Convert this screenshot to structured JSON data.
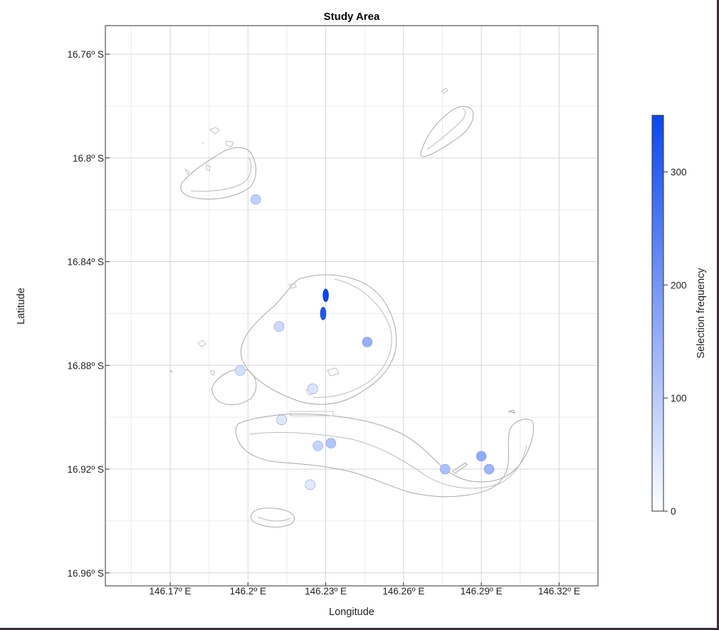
{
  "chart_data": {
    "type": "heatmap",
    "title": "Study Area",
    "xlabel": "Longitude",
    "ylabel": "Latitude",
    "x_ticks": [
      146.17,
      146.2,
      146.23,
      146.26,
      146.29,
      146.32
    ],
    "x_tick_labels": [
      "146.17º E",
      "146.2º E",
      "146.23º E",
      "146.26º E",
      "146.29º E",
      "146.32º E"
    ],
    "y_ticks": [
      -16.76,
      -16.8,
      -16.84,
      -16.88,
      -16.92,
      -16.96
    ],
    "y_tick_labels": [
      "16.76º S",
      "16.8º S",
      "16.84º S",
      "16.88º S",
      "16.92º S",
      "16.96º S"
    ],
    "xlim": [
      146.145,
      146.335
    ],
    "ylim": [
      -16.965,
      -16.749
    ],
    "grid": true,
    "colorbar": {
      "label": "Selection frequency",
      "range": [
        0,
        350
      ],
      "ticks": [
        0,
        100,
        200,
        300
      ],
      "tick_labels": [
        "0",
        "100",
        "200",
        "300"
      ],
      "color_low": "#ffffff",
      "color_high": "#0a47f0"
    },
    "outline_color": "#a8a8a8",
    "selected_regions": [
      {
        "x": 146.203,
        "y": -16.816,
        "value": 90
      },
      {
        "x": 146.212,
        "y": -16.865,
        "value": 70
      },
      {
        "x": 146.197,
        "y": -16.882,
        "value": 60
      },
      {
        "x": 146.246,
        "y": -16.871,
        "value": 150
      },
      {
        "x": 146.23,
        "y": -16.853,
        "value": 350
      },
      {
        "x": 146.229,
        "y": -16.86,
        "value": 320
      },
      {
        "x": 146.225,
        "y": -16.889,
        "value": 50
      },
      {
        "x": 146.232,
        "y": -16.91,
        "value": 110
      },
      {
        "x": 146.227,
        "y": -16.911,
        "value": 80
      },
      {
        "x": 146.213,
        "y": -16.901,
        "value": 45
      },
      {
        "x": 146.224,
        "y": -16.926,
        "value": 40
      },
      {
        "x": 146.29,
        "y": -16.915,
        "value": 160
      },
      {
        "x": 146.293,
        "y": -16.92,
        "value": 140
      },
      {
        "x": 146.276,
        "y": -16.92,
        "value": 120
      }
    ]
  }
}
